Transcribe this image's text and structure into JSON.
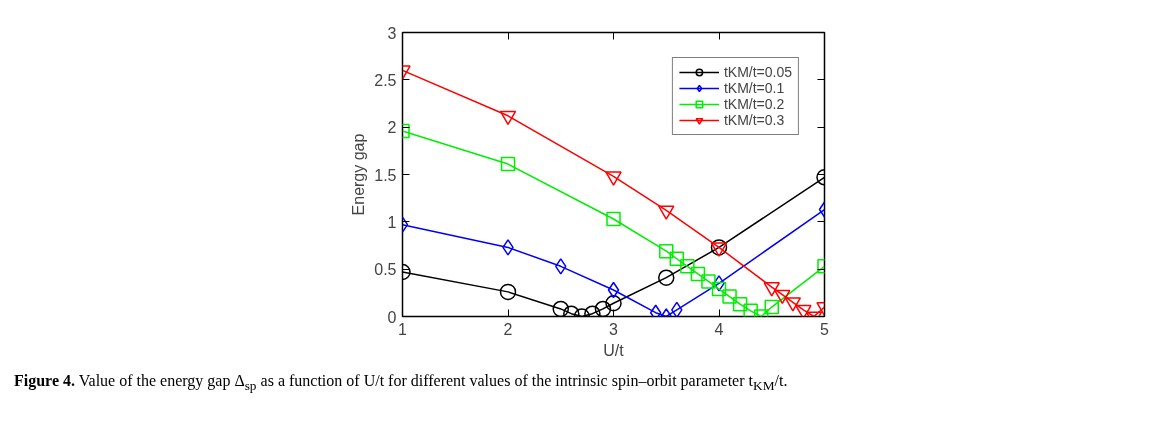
{
  "chart_data": {
    "type": "line",
    "xlabel": "U/t",
    "ylabel": "Energy gap",
    "xlim": [
      1,
      5
    ],
    "xticks": [
      1,
      2,
      3,
      4,
      5
    ],
    "ylim": [
      0,
      3
    ],
    "yticks": [
      0,
      {
        "value": 0.5,
        "label": "0.5"
      },
      1,
      {
        "value": 1.5,
        "label": "1.5"
      },
      2,
      {
        "value": 2.5,
        "label": "2.5"
      },
      3
    ],
    "grid": false,
    "legend": "top right",
    "line_style": "solid",
    "series": [
      {
        "name": "tKM/t=0.05",
        "color": "#000000",
        "marker": "circle",
        "x": [
          1,
          2,
          2.5,
          2.6,
          2.7,
          2.8,
          2.9,
          3.0,
          3.5,
          4,
          5
        ],
        "values": [
          0.47,
          0.26,
          0.08,
          0.03,
          0.0,
          0.03,
          0.08,
          0.14,
          0.41,
          0.73,
          1.47
        ]
      },
      {
        "name": "tKM/t=0.1",
        "color": "#0000ff",
        "marker": "diamond",
        "x": [
          1,
          2,
          2.5,
          3,
          3.4,
          3.5,
          3.6,
          4,
          5
        ],
        "values": [
          0.97,
          0.73,
          0.53,
          0.28,
          0.04,
          0.0,
          0.07,
          0.35,
          1.13
        ]
      },
      {
        "name": "tKM/t=0.2",
        "color": "#00ee00",
        "marker": "square",
        "x": [
          1,
          2,
          3,
          3.5,
          3.6,
          3.7,
          3.8,
          3.9,
          4.0,
          4.1,
          4.2,
          4.3,
          4.4,
          4.5,
          5
        ],
        "values": [
          1.96,
          1.61,
          1.03,
          0.69,
          0.61,
          0.53,
          0.45,
          0.37,
          0.29,
          0.21,
          0.13,
          0.06,
          0.0,
          0.1,
          0.53
        ]
      },
      {
        "name": "tKM/t=0.3",
        "color": "#ff0000",
        "marker": "triangle",
        "x": [
          1,
          2,
          3,
          3.5,
          4,
          4.5,
          4.6,
          4.7,
          4.8,
          4.9,
          5
        ],
        "values": [
          2.6,
          2.12,
          1.48,
          1.12,
          0.73,
          0.31,
          0.23,
          0.15,
          0.07,
          0.0,
          0.1
        ]
      }
    ],
    "annotations": [
      "Figure 4. Value of the energy gap Δ$_{sp}$ as a function of U/t for different values of the intrinsic spin–orbit parameter t$_{KM}$/t."
    ]
  }
}
